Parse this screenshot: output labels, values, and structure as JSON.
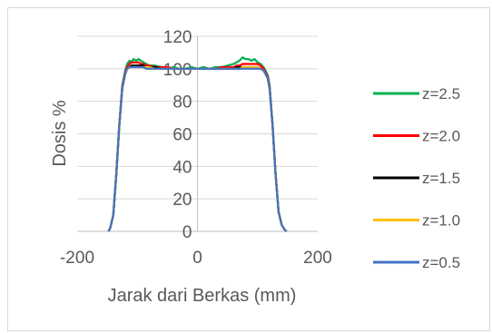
{
  "chart_data": {
    "type": "line",
    "title": "",
    "xlabel": "Jarak dari Berkas (mm)",
    "ylabel": "Dosis %",
    "xlim": [
      -200,
      200
    ],
    "ylim": [
      0,
      120
    ],
    "xticks": [
      -200,
      0,
      200
    ],
    "yticks": [
      0,
      20,
      40,
      60,
      80,
      100,
      120
    ],
    "grid": "horizontal",
    "legend": "right",
    "series": [
      {
        "name": "z=2.5",
        "color": "#00b050",
        "x": [
          -148,
          -145,
          -140,
          -135,
          -130,
          -125,
          -120,
          -117,
          -113,
          -110,
          -106,
          -102,
          -98,
          -94,
          -90,
          -85,
          -80,
          -70,
          -60,
          -50,
          -40,
          -30,
          -20,
          -10,
          0,
          10,
          20,
          30,
          40,
          50,
          60,
          65,
          70,
          75,
          80,
          85,
          90,
          95,
          100,
          105,
          110,
          113,
          117,
          120,
          125,
          130,
          135,
          140,
          145,
          148
        ],
        "y": [
          0,
          2,
          10,
          35,
          65,
          90,
          99,
          103,
          105,
          104,
          106,
          105,
          106,
          105,
          104,
          103,
          102,
          102,
          101,
          100,
          101,
          100,
          100,
          101,
          100,
          101,
          100,
          101,
          101,
          102,
          103,
          104,
          105,
          107,
          106,
          106,
          105,
          106,
          104,
          103,
          101,
          99,
          96,
          90,
          65,
          35,
          12,
          4,
          1,
          0
        ]
      },
      {
        "name": "z=2.0",
        "color": "#ff0000",
        "x": [
          -148,
          -145,
          -140,
          -135,
          -130,
          -125,
          -120,
          -117,
          -113,
          -110,
          -106,
          -102,
          -98,
          -94,
          -90,
          -85,
          -80,
          -70,
          -60,
          -50,
          -40,
          -30,
          -20,
          -10,
          0,
          10,
          20,
          30,
          40,
          50,
          60,
          65,
          70,
          75,
          80,
          85,
          90,
          95,
          100,
          105,
          110,
          113,
          117,
          120,
          125,
          130,
          135,
          140,
          145,
          148
        ],
        "y": [
          0,
          2,
          10,
          35,
          65,
          89,
          98,
          101,
          103,
          104,
          104,
          104,
          104,
          103,
          103,
          102,
          102,
          101,
          101,
          101,
          100,
          100,
          100,
          100,
          100,
          100,
          100,
          100,
          101,
          101,
          101,
          102,
          102,
          103,
          103,
          103,
          103,
          103,
          103,
          102,
          100,
          98,
          95,
          89,
          65,
          35,
          12,
          4,
          1,
          0
        ]
      },
      {
        "name": "z=1.5",
        "color": "#000000",
        "x": [
          -148,
          -145,
          -140,
          -135,
          -130,
          -125,
          -120,
          -117,
          -113,
          -110,
          -106,
          -102,
          -98,
          -94,
          -90,
          -85,
          -80,
          -70,
          -60,
          -50,
          -40,
          -30,
          -20,
          -10,
          0,
          10,
          20,
          30,
          40,
          50,
          60,
          65,
          70,
          75,
          80,
          85,
          90,
          95,
          100,
          105,
          110,
          113,
          117,
          120,
          125,
          130,
          135,
          140,
          145,
          148
        ],
        "y": [
          0,
          2,
          10,
          35,
          65,
          88,
          97,
          100,
          101,
          102,
          102,
          102,
          102,
          102,
          102,
          101,
          101,
          101,
          100,
          100,
          100,
          100,
          100,
          100,
          100,
          100,
          100,
          100,
          100,
          100,
          100,
          101,
          101,
          101,
          101,
          101,
          101,
          101,
          101,
          100,
          99,
          97,
          94,
          88,
          65,
          35,
          12,
          4,
          1,
          0
        ]
      },
      {
        "name": "z=1.0",
        "color": "#ffc000",
        "x": [
          -148,
          -145,
          -140,
          -135,
          -130,
          -125,
          -120,
          -117,
          -113,
          -110,
          -106,
          -102,
          -98,
          -94,
          -90,
          -85,
          -80,
          -70,
          -60,
          -50,
          -40,
          -30,
          -20,
          -10,
          0,
          10,
          20,
          30,
          40,
          50,
          60,
          65,
          70,
          75,
          80,
          85,
          90,
          95,
          100,
          105,
          110,
          113,
          117,
          120,
          125,
          130,
          135,
          140,
          145,
          148
        ],
        "y": [
          0,
          2,
          10,
          35,
          65,
          88,
          97,
          100,
          101,
          101,
          101,
          101,
          101,
          101,
          101,
          101,
          101,
          100,
          100,
          100,
          100,
          100,
          100,
          100,
          100,
          100,
          100,
          100,
          100,
          100,
          100,
          100,
          100,
          101,
          101,
          101,
          101,
          101,
          101,
          100,
          99,
          97,
          94,
          88,
          65,
          35,
          12,
          4,
          1,
          0
        ]
      },
      {
        "name": "z=0.5",
        "color": "#4472c4",
        "x": [
          -148,
          -145,
          -140,
          -135,
          -130,
          -125,
          -120,
          -117,
          -113,
          -110,
          -106,
          -102,
          -98,
          -94,
          -90,
          -85,
          -80,
          -70,
          -60,
          -50,
          -40,
          -30,
          -20,
          -10,
          0,
          10,
          20,
          30,
          40,
          50,
          60,
          65,
          70,
          75,
          80,
          85,
          90,
          95,
          100,
          105,
          110,
          113,
          117,
          120,
          125,
          130,
          135,
          140,
          145,
          148
        ],
        "y": [
          0,
          2,
          10,
          35,
          65,
          88,
          97,
          100,
          101,
          101,
          101,
          101,
          101,
          101,
          101,
          100,
          100,
          100,
          100,
          100,
          100,
          100,
          100,
          100,
          100,
          100,
          100,
          100,
          100,
          100,
          100,
          100,
          100,
          100,
          100,
          100,
          100,
          100,
          100,
          100,
          99,
          97,
          94,
          88,
          65,
          35,
          12,
          4,
          1,
          0
        ]
      }
    ]
  }
}
